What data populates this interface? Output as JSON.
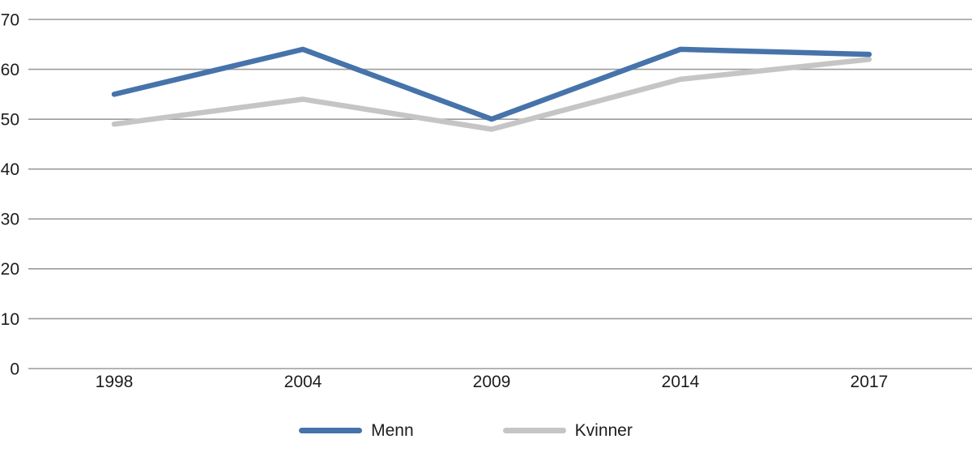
{
  "chart_data": {
    "type": "line",
    "categories": [
      "1998",
      "2004",
      "2009",
      "2014",
      "2017"
    ],
    "series": [
      {
        "name": "Menn",
        "color": "#4673AA",
        "values": [
          55,
          64,
          50,
          64,
          63
        ]
      },
      {
        "name": "Kvinner",
        "color": "#C5C5C5",
        "values": [
          49,
          54,
          48,
          58,
          62
        ]
      }
    ],
    "title": "",
    "xlabel": "",
    "ylabel": "",
    "ylim": [
      0,
      70
    ],
    "yticks": [
      0,
      10,
      20,
      30,
      40,
      50,
      60,
      70
    ],
    "grid": "horizontal",
    "legend_position": "bottom"
  },
  "colors": {
    "gridline": "#9c9c9c",
    "text": "#1d1d1b",
    "background": "#ffffff"
  }
}
